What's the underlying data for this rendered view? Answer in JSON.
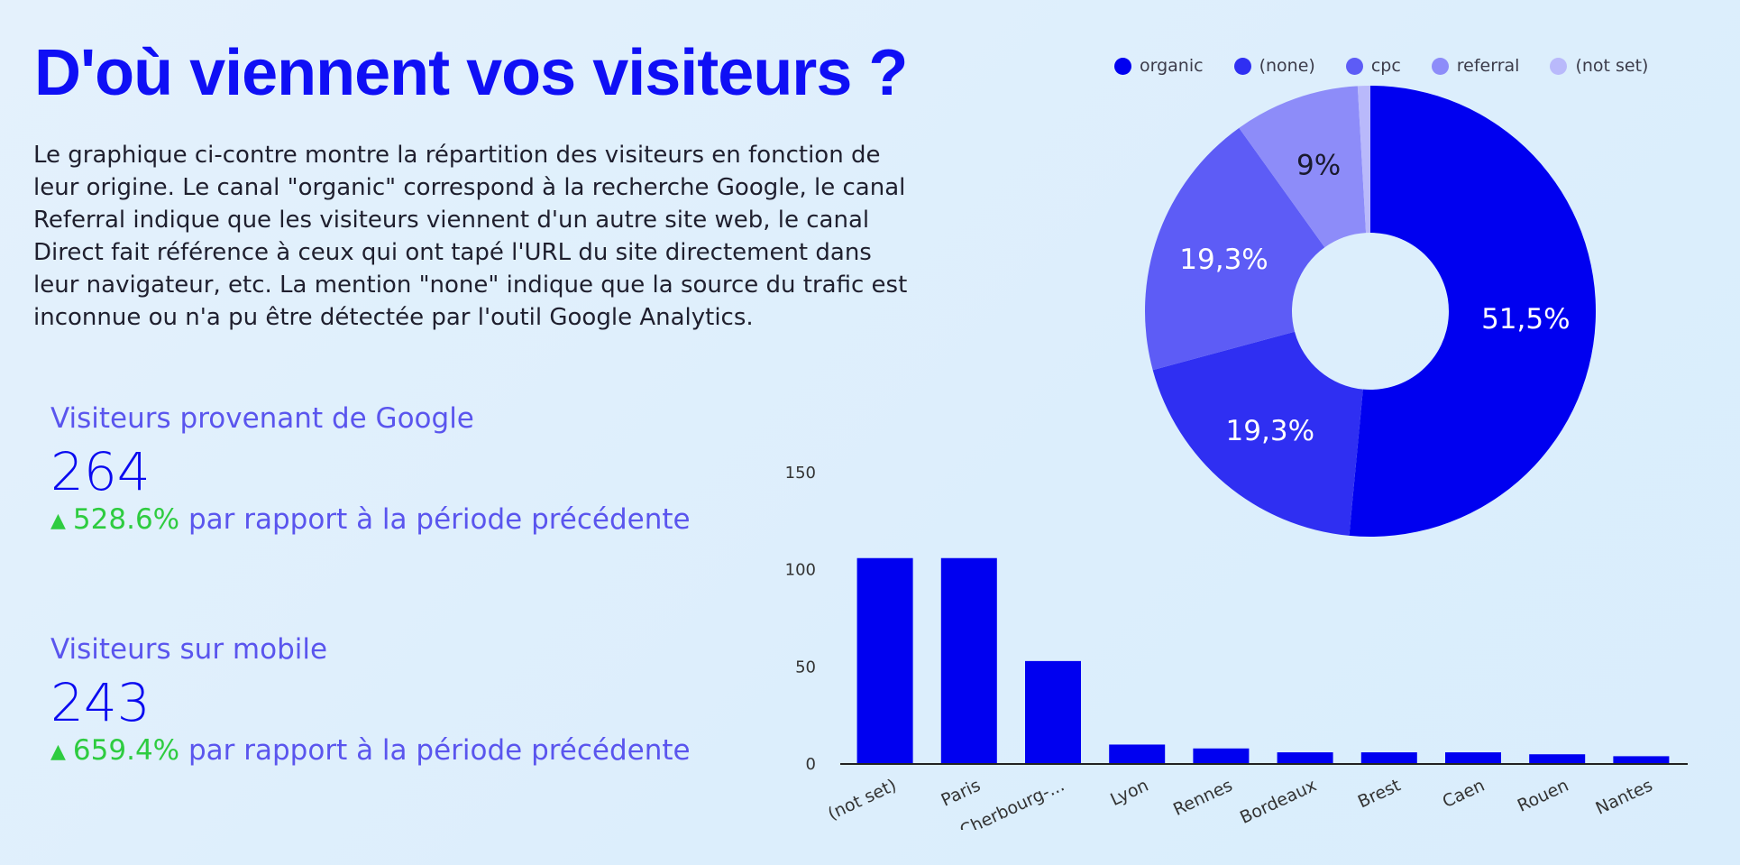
{
  "header": {
    "title": "D'où viennent vos visiteurs ?",
    "intro": "Le graphique ci-contre montre la répartition des visiteurs en fonction de leur origine. Le canal \"organic\" correspond à la recherche Google, le canal Referral indique que les visiteurs viennent d'un autre site web, le canal Direct fait référence à ceux qui ont tapé l'URL du site directement dans leur navigateur, etc. La mention \"none\" indique que la source du trafic est inconnue ou n'a pu être détectée par l'outil Google Analytics."
  },
  "kpis": [
    {
      "title": "Visiteurs provenant de Google",
      "value": "264",
      "delta_pct": "528.6%",
      "delta_text": "par rapport à la période précédente",
      "arrow_icon": "arrow-up-icon"
    },
    {
      "title": "Visiteurs sur mobile",
      "value": "243",
      "delta_pct": "659.4%",
      "delta_text": "par rapport à la période précédente",
      "arrow_icon": "arrow-up-icon"
    }
  ],
  "colors": {
    "title": "#0f0ff5",
    "accent": "#0000f0",
    "positive": "#2ecc40",
    "kpi_text": "#5a55ee"
  },
  "chart_data": [
    {
      "type": "pie",
      "variant": "donut",
      "legend_position": "top",
      "categories": [
        "organic",
        "(none)",
        "cpc",
        "referral",
        "(not set)"
      ],
      "values": [
        51.5,
        19.3,
        19.3,
        9.0,
        0.9
      ],
      "labels": [
        "51,5%",
        "19,3%",
        "19,3%",
        "9%",
        ""
      ],
      "colors": [
        "#0000f0",
        "#2f2ff2",
        "#5d5cf6",
        "#8d8cf9",
        "#b9b9fb"
      ],
      "label_colors": [
        "#ffffff",
        "#ffffff",
        "#ffffff",
        "#1a1a2e",
        "#1a1a2e"
      ]
    },
    {
      "type": "bar",
      "categories": [
        "(not set)",
        "Paris",
        "Cherbourg-...",
        "Lyon",
        "Rennes",
        "Bordeaux",
        "Brest",
        "Caen",
        "Rouen",
        "Nantes"
      ],
      "values": [
        106,
        106,
        53,
        10,
        8,
        6,
        6,
        6,
        5,
        4
      ],
      "ylim": [
        0,
        150
      ],
      "yticks": [
        0,
        50,
        100,
        150
      ],
      "xlabel": "",
      "ylabel": "",
      "color": "#0000f0",
      "grid": false
    }
  ]
}
